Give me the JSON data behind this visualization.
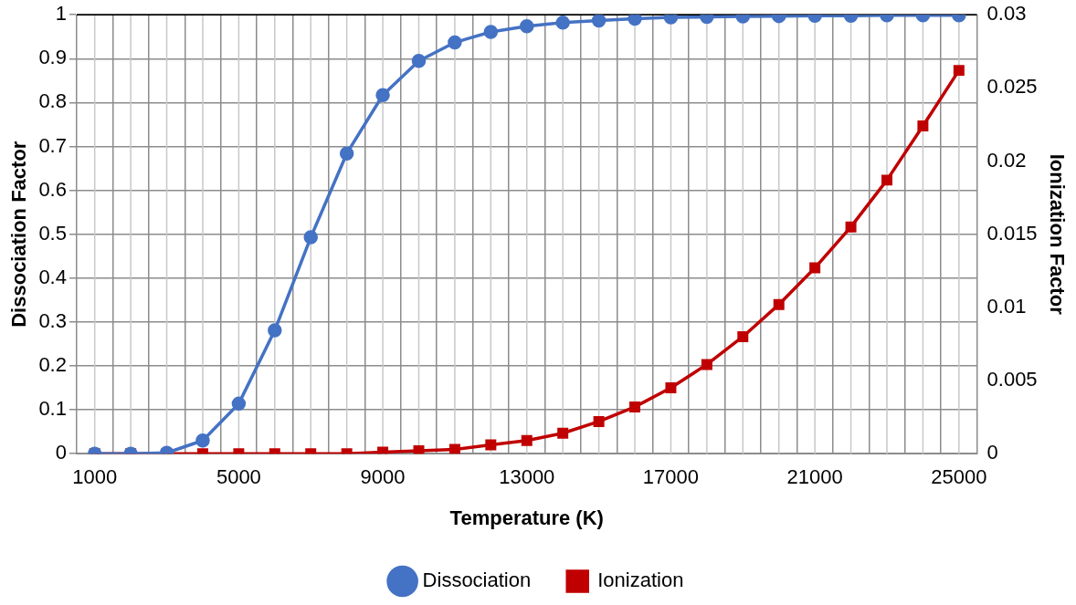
{
  "chart_data": {
    "type": "line",
    "xlabel": "Temperature (K)",
    "ylabel": "Dissociation Factor",
    "y2label": "Ionization Factor",
    "categories": [
      "1000",
      null,
      null,
      null,
      "5000",
      null,
      null,
      null,
      "9000",
      null,
      null,
      null,
      "13000",
      null,
      null,
      null,
      "17000",
      null,
      null,
      null,
      "21000",
      null,
      null,
      null,
      "25000"
    ],
    "series": [
      {
        "name": "Dissociation",
        "color": "#4472c4",
        "marker": "circle",
        "values": [
          0,
          0,
          0.002,
          0.03,
          0.114,
          0.281,
          0.493,
          0.684,
          0.817,
          0.895,
          0.937,
          0.961,
          0.974,
          0.982,
          0.987,
          0.991,
          0.994,
          0.995,
          0.996,
          0.997,
          0.998,
          0.998,
          0.999,
          0.999,
          0.999
        ]
      },
      {
        "name": "Ionization",
        "color": "#c00000",
        "marker": "square",
        "axis": "y2",
        "values": [
          0,
          0,
          0,
          0,
          0,
          0,
          0,
          0,
          0.0001,
          0.0002,
          0.0003,
          0.0006,
          0.0009,
          0.0014,
          0.0022,
          0.0032,
          0.0045,
          0.0061,
          0.008,
          0.0102,
          0.0127,
          0.0155,
          0.0187,
          0.0224,
          0.0262
        ]
      }
    ],
    "ylim": [
      0,
      1
    ],
    "yticks": [
      0,
      0.1,
      0.2,
      0.3,
      0.4,
      0.5,
      0.6,
      0.7,
      0.8,
      0.9,
      1
    ],
    "y2lim": [
      0,
      0.03
    ],
    "y2ticks": [
      0,
      0.005,
      0.01,
      0.015,
      0.02,
      0.025,
      0.03
    ],
    "grid": true,
    "legend": "bottom",
    "line_style": "solid"
  }
}
